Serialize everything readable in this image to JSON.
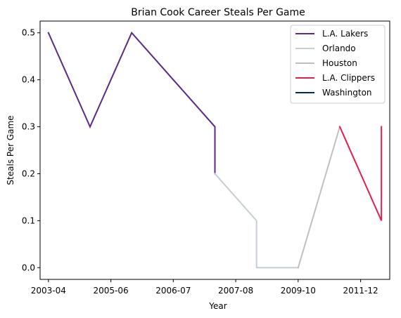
{
  "chart_data": {
    "type": "line",
    "title": "Brian Cook Career Steals Per Game",
    "xlabel": "Year",
    "ylabel": "Steals Per Game",
    "x_ticks": [
      "2003-04",
      "2005-06",
      "2006-07",
      "2007-08",
      "2009-10",
      "2011-12"
    ],
    "y_ticks": [
      "0.0",
      "0.1",
      "0.2",
      "0.3",
      "0.4",
      "0.5"
    ],
    "ylim": [
      -0.025,
      0.525
    ],
    "grid": false,
    "legend_position": "top-right",
    "series": [
      {
        "name": "L.A. Lakers",
        "color": "#5B2A86",
        "points": [
          {
            "x": 0.0,
            "y": 0.5
          },
          {
            "x": 1.0,
            "y": 0.3
          },
          {
            "x": 2.0,
            "y": 0.5
          },
          {
            "x": 4.0,
            "y": 0.3
          },
          {
            "x": 4.0,
            "y": 0.2
          }
        ]
      },
      {
        "name": "Orlando",
        "color": "#C4CED4",
        "points": [
          {
            "x": 4.0,
            "y": 0.2
          },
          {
            "x": 5.0,
            "y": 0.1
          },
          {
            "x": 5.0,
            "y": 0.0
          },
          {
            "x": 6.0,
            "y": 0.0
          }
        ]
      },
      {
        "name": "Houston",
        "color": "#BEC0C2",
        "points": [
          {
            "x": 6.0,
            "y": 0.0
          },
          {
            "x": 7.0,
            "y": 0.3
          }
        ]
      },
      {
        "name": "L.A. Clippers",
        "color": "#E31E4F",
        "points": [
          {
            "x": 7.0,
            "y": 0.3
          },
          {
            "x": 8.0,
            "y": 0.1
          },
          {
            "x": 8.0,
            "y": 0.3
          }
        ]
      },
      {
        "name": "Washington",
        "color": "#002B5C",
        "points": []
      }
    ]
  }
}
